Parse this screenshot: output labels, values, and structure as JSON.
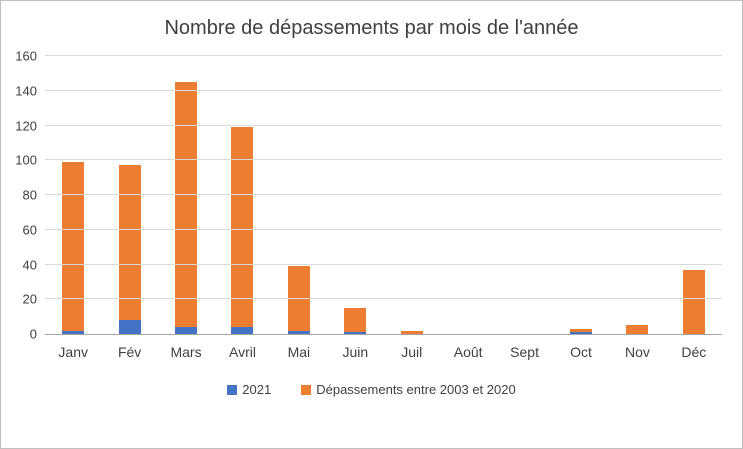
{
  "chart_data": {
    "type": "bar",
    "stacked": true,
    "title": "Nombre de dépassements par mois de l'année",
    "categories": [
      "Janv",
      "Fév",
      "Mars",
      "Avril",
      "Mai",
      "Juin",
      "Juil",
      "Août",
      "Sept",
      "Oct",
      "Nov",
      "Déc"
    ],
    "series": [
      {
        "name": "2021",
        "color": "#4472C4",
        "values": [
          2,
          8,
          4,
          4,
          2,
          1,
          0,
          0,
          0,
          1,
          0,
          0
        ]
      },
      {
        "name": "Dépassements entre 2003 et 2020",
        "color": "#ED7D31",
        "values": [
          97,
          89,
          141,
          115,
          37,
          14,
          2,
          0,
          0,
          2,
          5,
          37
        ]
      }
    ],
    "xlabel": "",
    "ylabel": "",
    "ylim": [
      0,
      160
    ],
    "ytick_step": 20,
    "grid": true,
    "legend_position": "bottom"
  }
}
